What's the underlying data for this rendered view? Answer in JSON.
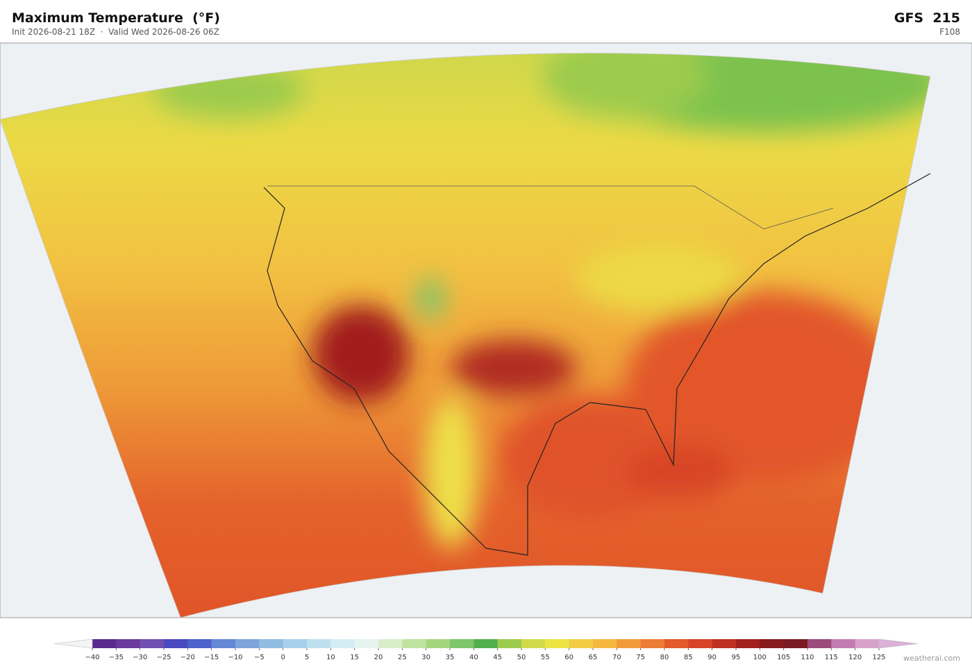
{
  "header": {
    "title": "Maximum Temperature  (°F)",
    "subtitle": "Init 2026-08-21 18Z  ·  Valid Wed 2026-08-26 06Z",
    "model": "GFS  215",
    "forecast_hour": "F108"
  },
  "colorbar": {
    "ticks": [
      {
        "value": -40,
        "label": "−40"
      },
      {
        "value": -35,
        "label": "−35"
      },
      {
        "value": -30,
        "label": "−30"
      },
      {
        "value": -25,
        "label": "−25"
      },
      {
        "value": -20,
        "label": "−20"
      },
      {
        "value": -15,
        "label": "−15"
      },
      {
        "value": -10,
        "label": "−10"
      },
      {
        "value": -5,
        "label": "−5"
      },
      0,
      5,
      10,
      15,
      20,
      25,
      30,
      35,
      40,
      45,
      50,
      55,
      60,
      65,
      70,
      75,
      80,
      85,
      90,
      95,
      100,
      105,
      110,
      115,
      120,
      125
    ],
    "colors": [
      "#5b2a8f",
      "#6a3a9e",
      "#7050b0",
      "#4a4ac0",
      "#4e62cc",
      "#6588d6",
      "#7fa4dc",
      "#92bde3",
      "#a8d0ec",
      "#bfe0f0",
      "#d4ecf3",
      "#e6f4ef",
      "#d8eec8",
      "#bfe3a0",
      "#a3d67f",
      "#7ec66a",
      "#52b04c",
      "#9ccb4e",
      "#cfdb4a",
      "#ece445",
      "#f2cc44",
      "#f5b83f",
      "#f19a3a",
      "#ec7d34",
      "#e45a2a",
      "#d84427",
      "#c03022",
      "#a21f1f",
      "#861a1c",
      "#7a1a22",
      "#9c4a7c",
      "#c27cb0",
      "#d8a2cc"
    ],
    "under_color": "#f4f4f6",
    "over_color": "#dcb0d8"
  },
  "footer": {
    "credit": "weatherai.com"
  }
}
